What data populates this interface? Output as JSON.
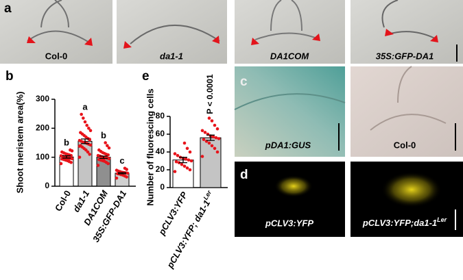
{
  "panels": {
    "a": {
      "letter": "a",
      "captions": [
        "Col-0",
        "da1-1",
        "DA1COM",
        "35S:GFP-DA1"
      ]
    },
    "c": {
      "letter": "c",
      "captions": [
        "pDA1:GUS",
        "Col-0"
      ]
    },
    "d": {
      "letter": "d",
      "captions": [
        "pCLV3:YFP",
        "pCLV3:YFP;da1-1"
      ],
      "caption_superscript": "Ler"
    }
  },
  "chart_data": [
    {
      "type": "bar",
      "letter": "b",
      "y_label": "Shoot meristem area(%)",
      "categories": [
        "Col-0",
        "da1-1",
        "DA1COM",
        "35S:GFP-DA1"
      ],
      "values": [
        101,
        155,
        100,
        45
      ],
      "errors": [
        4,
        8,
        4,
        2
      ],
      "colors": [
        "#ffffff",
        "#c4c4c4",
        "#8f8f8f",
        "#d0d0d0"
      ],
      "point_color": "#e8141b",
      "annotations": [
        "b",
        "a",
        "b",
        "c"
      ],
      "points": [
        [
          78,
          82,
          85,
          88,
          90,
          92,
          94,
          95,
          96,
          98,
          100,
          101,
          103,
          105,
          106,
          108,
          110,
          112,
          115,
          118,
          122,
          125,
          88,
          97
        ],
        [
          100,
          110,
          118,
          125,
          130,
          135,
          140,
          142,
          145,
          148,
          150,
          152,
          155,
          158,
          160,
          165,
          170,
          175,
          180,
          185,
          192,
          200,
          210,
          222,
          235,
          248,
          138,
          162
        ],
        [
          72,
          78,
          82,
          86,
          88,
          90,
          92,
          95,
          97,
          99,
          100,
          102,
          104,
          106,
          108,
          110,
          113,
          116,
          120,
          125,
          132,
          140,
          150,
          94,
          101
        ],
        [
          28,
          32,
          35,
          38,
          40,
          42,
          43,
          45,
          46,
          47,
          48,
          50,
          52,
          55,
          58,
          62,
          44,
          41
        ]
      ],
      "ylim": [
        0,
        300
      ],
      "yticks": [
        0,
        100,
        200,
        300
      ]
    },
    {
      "type": "bar",
      "letter": "e",
      "y_label": "Number of fluorescing cells",
      "categories": [
        "pCLV3:YFP",
        "pCLV3:YFP; da1-1"
      ],
      "category_superscript": [
        null,
        "Ler"
      ],
      "values": [
        31,
        56
      ],
      "errors": [
        3,
        3
      ],
      "colors": [
        "#ffffff",
        "#c4c4c4"
      ],
      "point_color": "#e8141b",
      "annotation": "P < 0.0001",
      "points": [
        [
          18,
          20,
          22,
          24,
          26,
          28,
          29,
          30,
          31,
          32,
          33,
          34,
          36,
          38,
          40,
          44,
          50
        ],
        [
          35,
          40,
          44,
          47,
          50,
          52,
          54,
          55,
          56,
          57,
          58,
          60,
          62,
          64,
          66,
          70,
          75,
          78
        ]
      ],
      "ylim": [
        0,
        80
      ],
      "yticks": [
        0,
        20,
        40,
        60,
        80
      ]
    }
  ]
}
